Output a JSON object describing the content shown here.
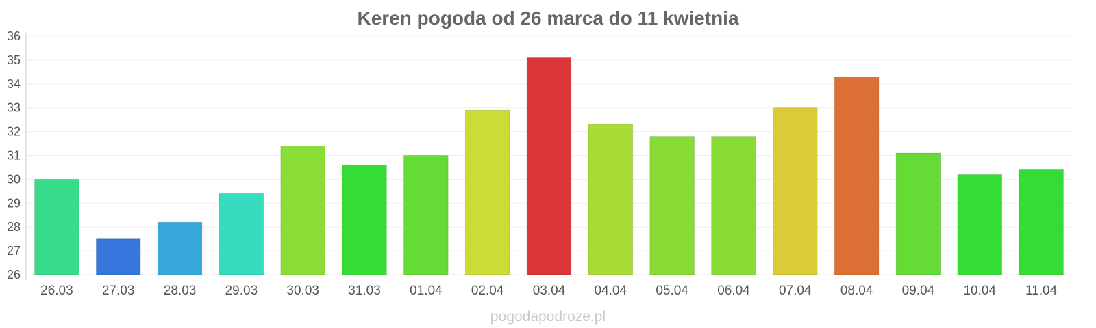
{
  "chart_data": {
    "type": "bar",
    "title": "Keren pogoda od 26 marca do 11 kwietnia",
    "xlabel": "",
    "ylabel": "",
    "ylim": [
      26,
      36
    ],
    "yticks": [
      "26",
      "27",
      "28",
      "29",
      "30",
      "31",
      "32",
      "33",
      "34",
      "35",
      "36"
    ],
    "grid": true,
    "categories": [
      "26.03",
      "27.03",
      "28.03",
      "29.03",
      "30.03",
      "31.03",
      "01.04",
      "02.04",
      "03.04",
      "04.04",
      "05.04",
      "06.04",
      "07.04",
      "08.04",
      "09.04",
      "10.04",
      "11.04"
    ],
    "values": [
      30.0,
      27.5,
      28.2,
      29.4,
      31.4,
      30.6,
      31.0,
      32.9,
      35.1,
      32.3,
      31.8,
      31.8,
      33.0,
      34.3,
      31.1,
      30.2,
      30.4
    ],
    "colors": [
      "#36dc8a",
      "#3577dc",
      "#36a8dc",
      "#36dcbe",
      "#8adc36",
      "#36dc36",
      "#65dc36",
      "#ccdc36",
      "#dc3636",
      "#a8dc36",
      "#89dc36",
      "#89dc36",
      "#dccb36",
      "#dc6f36",
      "#65dc36",
      "#36dc36",
      "#36dc36"
    ]
  },
  "credit": "pogodapodroze.pl"
}
